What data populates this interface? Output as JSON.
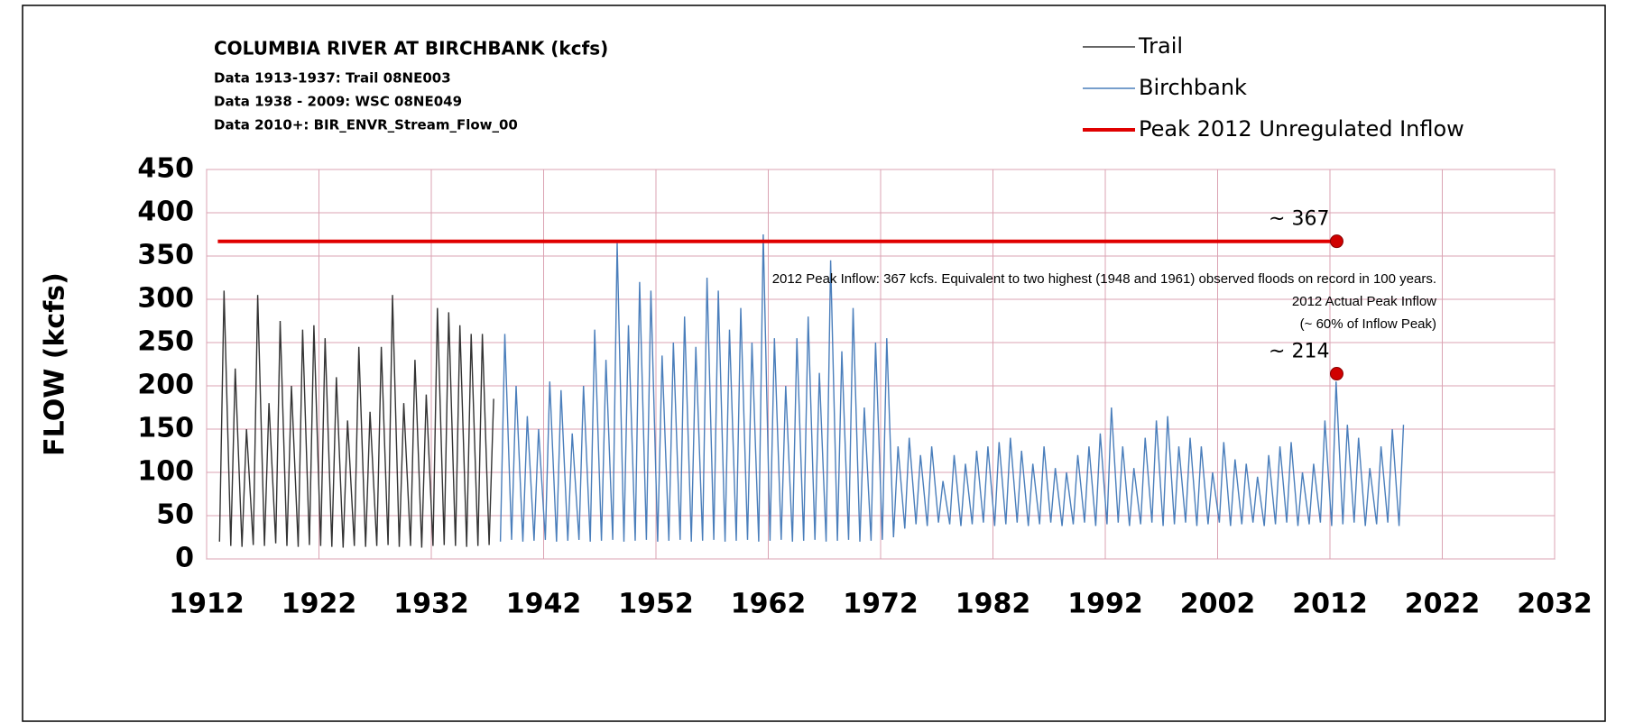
{
  "chart_data": {
    "type": "line",
    "title": "COLUMBIA RIVER AT BIRCHBANK (kcfs)",
    "subtitle": [
      "Data 1913-1937: Trail 08NE003",
      "Data 1938 - 2009: WSC 08NE049",
      "Data 2010+: BIR_ENVR_Stream_Flow_00"
    ],
    "y_label": "FLOW (kcfs)",
    "xlim": [
      1912,
      2032
    ],
    "xticks": [
      1912,
      1922,
      1932,
      1942,
      1952,
      1962,
      1972,
      1982,
      1992,
      2002,
      2012,
      2022,
      2032
    ],
    "ylim": [
      0,
      450
    ],
    "yticks": [
      0,
      50,
      100,
      150,
      200,
      250,
      300,
      350,
      400,
      450
    ],
    "grid": true,
    "legend": "top-right",
    "series": [
      {
        "name": "Trail",
        "color": "#333333",
        "x": [
          1913.15,
          1913.55,
          1914.15,
          1914.55,
          1915.15,
          1915.55,
          1916.15,
          1916.55,
          1917.15,
          1917.55,
          1918.15,
          1918.55,
          1919.15,
          1919.55,
          1920.15,
          1920.55,
          1921.15,
          1921.55,
          1922.15,
          1922.55,
          1923.15,
          1923.55,
          1924.15,
          1924.55,
          1925.15,
          1925.55,
          1926.15,
          1926.55,
          1927.15,
          1927.55,
          1928.15,
          1928.55,
          1929.15,
          1929.55,
          1930.15,
          1930.55,
          1931.15,
          1931.55,
          1932.15,
          1932.55,
          1933.15,
          1933.55,
          1934.15,
          1934.55,
          1935.15,
          1935.55,
          1936.15,
          1936.55,
          1937.15,
          1937.55
        ],
        "values": [
          20,
          310,
          15,
          220,
          14,
          150,
          16,
          305,
          15,
          180,
          18,
          275,
          15,
          200,
          14,
          265,
          16,
          270,
          15,
          255,
          14,
          210,
          13,
          160,
          15,
          245,
          14,
          170,
          15,
          245,
          16,
          305,
          14,
          180,
          15,
          230,
          13,
          190,
          15,
          290,
          16,
          285,
          15,
          270,
          14,
          260,
          15,
          260,
          16,
          185
        ]
      },
      {
        "name": "Birchbank",
        "color": "#4a7ebb",
        "x": [
          1938.15,
          1938.55,
          1939.15,
          1939.55,
          1940.15,
          1940.55,
          1941.15,
          1941.55,
          1942.15,
          1942.55,
          1943.15,
          1943.55,
          1944.15,
          1944.55,
          1945.15,
          1945.55,
          1946.15,
          1946.55,
          1947.15,
          1947.55,
          1948.15,
          1948.55,
          1949.15,
          1949.55,
          1950.15,
          1950.55,
          1951.15,
          1951.55,
          1952.15,
          1952.55,
          1953.15,
          1953.55,
          1954.15,
          1954.55,
          1955.15,
          1955.55,
          1956.15,
          1956.55,
          1957.15,
          1957.55,
          1958.15,
          1958.55,
          1959.15,
          1959.55,
          1960.15,
          1960.55,
          1961.15,
          1961.55,
          1962.15,
          1962.55,
          1963.15,
          1963.55,
          1964.15,
          1964.55,
          1965.15,
          1965.55,
          1966.15,
          1966.55,
          1967.15,
          1967.55,
          1968.15,
          1968.55,
          1969.15,
          1969.55,
          1970.15,
          1970.55,
          1971.15,
          1971.55,
          1972.15,
          1972.55,
          1973.15,
          1973.55,
          1974.15,
          1974.55,
          1975.15,
          1975.55,
          1976.15,
          1976.55,
          1977.15,
          1977.55,
          1978.15,
          1978.55,
          1979.15,
          1979.55,
          1980.15,
          1980.55,
          1981.15,
          1981.55,
          1982.15,
          1982.55,
          1983.15,
          1983.55,
          1984.15,
          1984.55,
          1985.15,
          1985.55,
          1986.15,
          1986.55,
          1987.15,
          1987.55,
          1988.15,
          1988.55,
          1989.15,
          1989.55,
          1990.15,
          1990.55,
          1991.15,
          1991.55,
          1992.15,
          1992.55,
          1993.15,
          1993.55,
          1994.15,
          1994.55,
          1995.15,
          1995.55,
          1996.15,
          1996.55,
          1997.15,
          1997.55,
          1998.15,
          1998.55,
          1999.15,
          1999.55,
          2000.15,
          2000.55,
          2001.15,
          2001.55,
          2002.15,
          2002.55,
          2003.15,
          2003.55,
          2004.15,
          2004.55,
          2005.15,
          2005.55,
          2006.15,
          2006.55,
          2007.15,
          2007.55,
          2008.15,
          2008.55,
          2009.15,
          2009.55,
          2010.15,
          2010.55,
          2011.15,
          2011.55,
          2012.15,
          2012.55,
          2013.15,
          2013.55,
          2014.15,
          2014.55,
          2015.15,
          2015.55,
          2016.15,
          2016.55,
          2017.15,
          2017.55,
          2018.15,
          2018.55
        ],
        "values": [
          20,
          260,
          22,
          200,
          20,
          165,
          21,
          150,
          22,
          205,
          20,
          195,
          21,
          145,
          22,
          200,
          20,
          265,
          21,
          230,
          22,
          365,
          20,
          270,
          21,
          320,
          22,
          310,
          20,
          235,
          21,
          250,
          22,
          280,
          20,
          245,
          21,
          325,
          22,
          310,
          20,
          265,
          21,
          290,
          22,
          250,
          20,
          375,
          21,
          255,
          22,
          200,
          20,
          255,
          21,
          280,
          22,
          215,
          20,
          345,
          21,
          240,
          22,
          290,
          20,
          175,
          21,
          250,
          22,
          255,
          25,
          130,
          35,
          140,
          40,
          120,
          38,
          130,
          42,
          90,
          40,
          120,
          38,
          110,
          40,
          125,
          42,
          130,
          38,
          135,
          40,
          140,
          42,
          125,
          38,
          110,
          40,
          130,
          42,
          105,
          38,
          100,
          40,
          120,
          42,
          130,
          38,
          145,
          40,
          175,
          42,
          130,
          38,
          105,
          40,
          140,
          42,
          160,
          38,
          165,
          40,
          130,
          42,
          140,
          38,
          130,
          40,
          100,
          42,
          135,
          38,
          115,
          40,
          110,
          42,
          95,
          38,
          120,
          40,
          130,
          42,
          135,
          38,
          100,
          40,
          110,
          42,
          160,
          38,
          205,
          40,
          155,
          42,
          140,
          38,
          105,
          40,
          130,
          42,
          150,
          38,
          155
        ]
      },
      {
        "name": "Peak 2012 Unregulated Inflow",
        "color": "#e00000",
        "x": [
          1913,
          2012.6
        ],
        "values": [
          367,
          367
        ]
      }
    ],
    "markers": {
      "x": [
        2012.6,
        2012.6
      ],
      "values": [
        367,
        214
      ],
      "value_labels": [
        "~ 367",
        "~ 214"
      ],
      "color": "#d00000"
    },
    "annotations": [
      "2012 Peak Inflow: 367 kcfs. Equivalent to two highest (1948 and 1961) observed floods on record in 100 years.",
      "2012 Actual Peak Inflow",
      "(~ 60% of Inflow Peak)"
    ]
  }
}
